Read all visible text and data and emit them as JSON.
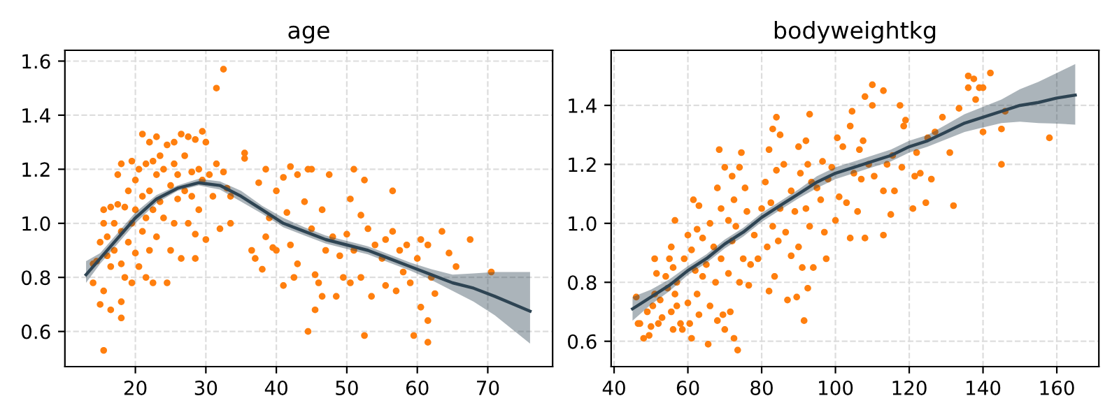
{
  "chart_data": [
    {
      "type": "scatter",
      "title": "age",
      "xlim": [
        10,
        79.2
      ],
      "ylim": [
        0.47,
        1.64
      ],
      "xticks": [
        20,
        30,
        40,
        50,
        60,
        70
      ],
      "yticks": [
        0.6,
        0.8,
        {
          "value": 1,
          "label": "1.0"
        },
        1.2,
        1.4,
        1.6
      ],
      "grid": true,
      "marker": "circle",
      "series": [
        {
          "color": "#ff7f0e",
          "x": [
            14,
            14.5,
            15,
            15.5,
            15.5,
            16,
            16,
            16.5,
            16.5,
            17,
            17,
            17.5,
            17.5,
            18,
            18,
            18,
            18.5,
            18.5,
            19,
            19,
            19.5,
            19.5,
            19.5,
            20,
            20,
            20,
            20.5,
            20.5,
            21,
            21,
            21,
            21.5,
            21.5,
            21.5,
            22,
            22,
            22,
            22.5,
            22.5,
            22.5,
            23,
            23,
            23,
            23.5,
            23.5,
            24,
            24,
            24.5,
            24.5,
            25,
            25,
            25.5,
            25.5,
            25.5,
            26,
            26,
            26.5,
            26.5,
            27,
            27,
            27.5,
            27.5,
            28,
            28,
            28.5,
            28.5,
            28.5,
            29,
            29,
            29.5,
            29.5,
            30,
            30,
            30.5,
            31,
            31.5,
            31.5,
            32,
            32.5,
            32.5,
            33,
            33.5,
            33.5,
            35.5,
            35.5,
            36.5,
            37,
            37.5,
            38,
            38.5,
            38.5,
            39,
            39.5,
            40,
            40,
            41,
            41,
            41.5,
            42,
            42,
            42.5,
            43,
            43,
            44,
            44.5,
            44.5,
            45,
            45,
            45.5,
            45.5,
            46,
            46.5,
            46.5,
            47,
            47.5,
            48,
            48.5,
            49,
            49.5,
            50,
            50.5,
            50.5,
            51,
            51,
            52,
            52,
            52.5,
            52.5,
            53,
            53.5,
            54,
            55,
            55.5,
            55.5,
            56.5,
            56.5,
            57,
            57.5,
            58,
            58.5,
            59,
            59.5,
            60,
            60.5,
            60.5,
            61.5,
            61.5,
            61.5,
            62,
            62.5,
            63.5,
            64.5,
            65.5,
            67.5,
            70.5,
            14,
            15,
            15.5,
            15.5,
            16.5,
            18,
            18
          ],
          "values": [
            0.85,
            0.86,
            0.93,
            1.0,
            1.05,
            0.88,
            0.95,
            1.06,
            0.84,
            1.0,
            0.9,
            1.07,
            1.18,
            1.22,
            0.97,
            0.85,
            1.06,
            0.8,
            1.12,
            0.93,
            1.23,
            1.0,
            0.78,
            1.16,
            1.05,
            0.89,
            1.2,
            0.84,
            1.33,
            1.1,
            0.97,
            1.22,
            1.02,
            0.8,
            1.3,
            1.12,
            0.9,
            1.23,
            1.05,
            0.78,
            1.32,
            1.18,
            0.95,
            1.25,
            1.08,
            1.2,
            1.02,
            1.29,
            0.78,
            1.14,
            0.9,
            1.3,
            1.22,
            1.0,
            1.18,
            1.09,
            1.33,
            0.87,
            1.25,
            1.12,
            1.32,
            1.0,
            1.19,
            1.1,
            1.31,
            0.96,
            0.87,
            1.2,
            1.05,
            1.34,
            1.16,
            1.3,
            0.94,
            1.18,
            1.1,
            1.5,
            1.22,
            0.98,
            1.57,
            1.19,
            1.13,
            1.0,
            1.1,
            1.26,
            1.24,
            0.9,
            0.87,
            1.15,
            0.83,
            1.2,
            0.95,
            1.02,
            0.91,
            1.12,
            0.9,
            1.17,
            0.77,
            1.04,
            1.21,
            0.92,
            0.8,
            1.18,
            0.85,
            1.08,
            1.2,
            0.6,
            1.2,
            0.98,
            0.81,
            0.68,
            0.78,
            1.05,
            0.73,
            0.9,
            1.18,
            0.95,
            0.73,
            0.88,
            0.8,
            0.96,
            1.09,
            0.78,
            1.2,
            0.9,
            1.03,
            0.8,
            1.16,
            0.585,
            0.98,
            0.73,
            0.92,
            0.87,
            0.94,
            0.77,
            1.12,
            0.97,
            0.75,
            0.9,
            0.82,
            0.92,
            0.78,
            0.585,
            0.87,
            0.94,
            0.69,
            0.92,
            0.64,
            0.56,
            0.8,
            0.74,
            0.97,
            0.89,
            0.84,
            0.94,
            0.82,
            0.78,
            0.7,
            0.53,
            0.75,
            0.68,
            0.65,
            0.71
          ]
        },
        {
          "type": "line",
          "marker": "none",
          "color": "#2e4453",
          "x": [
            13,
            15,
            17,
            20,
            23,
            26,
            29,
            32,
            35,
            38,
            41,
            44,
            47,
            50,
            53,
            56,
            59,
            62,
            65,
            68,
            71,
            76
          ],
          "values": [
            0.81,
            0.87,
            0.93,
            1.02,
            1.09,
            1.13,
            1.15,
            1.14,
            1.1,
            1.05,
            1.0,
            0.97,
            0.94,
            0.92,
            0.9,
            0.87,
            0.84,
            0.81,
            0.78,
            0.76,
            0.73,
            0.675
          ],
          "lower": [
            0.78,
            0.85,
            0.91,
            1.0,
            1.075,
            1.12,
            1.14,
            1.125,
            1.08,
            1.035,
            0.985,
            0.955,
            0.925,
            0.905,
            0.885,
            0.855,
            0.825,
            0.79,
            0.75,
            0.71,
            0.66,
            0.555
          ],
          "upper": [
            0.86,
            0.89,
            0.95,
            1.04,
            1.105,
            1.14,
            1.165,
            1.155,
            1.12,
            1.065,
            1.02,
            0.985,
            0.955,
            0.935,
            0.915,
            0.885,
            0.855,
            0.83,
            0.81,
            0.815,
            0.82,
            0.82
          ]
        }
      ]
    },
    {
      "type": "scatter",
      "title": "bodyweightkg",
      "xlim": [
        39.2,
        171.4
      ],
      "ylim": [
        0.514,
        1.587
      ],
      "xticks": [
        40,
        60,
        80,
        100,
        120,
        140,
        160
      ],
      "yticks": [
        0.6,
        0.8,
        {
          "value": 1,
          "label": "1.0"
        },
        1.2,
        1.4
      ],
      "grid": true,
      "marker": "circle",
      "series": [
        {
          "color": "#ff7f0e",
          "x": [
            46,
            46.5,
            47,
            48,
            49,
            49.5,
            50,
            50.5,
            51,
            51,
            51.5,
            52,
            52.5,
            53,
            54,
            54.5,
            55,
            55.5,
            55.5,
            56,
            56,
            56.5,
            56.5,
            57,
            57,
            58,
            58.5,
            59,
            60,
            60,
            60.5,
            61,
            61,
            61.5,
            62,
            62.5,
            62.5,
            63,
            63,
            64,
            64,
            65,
            65.5,
            66,
            66,
            67,
            67.5,
            68,
            68,
            68.5,
            69,
            69,
            69.5,
            70,
            70,
            71,
            71,
            71.5,
            72,
            72,
            72.5,
            72.5,
            73,
            73.5,
            74,
            74,
            74.5,
            75,
            75.5,
            76,
            76.5,
            77,
            78,
            79,
            80,
            81,
            81.5,
            82,
            82,
            82.5,
            83,
            83,
            83.5,
            84,
            84,
            84.5,
            85,
            85,
            86,
            86.5,
            87,
            88,
            88,
            89,
            89.5,
            90,
            90,
            90.5,
            91,
            91.5,
            92,
            92,
            92.5,
            92.5,
            93,
            93,
            93.5,
            94,
            95,
            96,
            96.5,
            97,
            97.5,
            98,
            99,
            100,
            100.5,
            101,
            102,
            103,
            104,
            104,
            104.5,
            105,
            106,
            106.5,
            107,
            107.5,
            108,
            108,
            109,
            110,
            110,
            110.5,
            113,
            113,
            113,
            114,
            115,
            115.5,
            116,
            117.5,
            118,
            118.5,
            119,
            121,
            121.5,
            122,
            123,
            124.5,
            125,
            126,
            127,
            129,
            131,
            132,
            133.5,
            136,
            136,
            137.5,
            138,
            139,
            140,
            140,
            142,
            145,
            145,
            146,
            158
          ],
          "values": [
            0.75,
            0.66,
            0.66,
            0.61,
            0.7,
            0.62,
            0.65,
            0.72,
            0.88,
            0.76,
            0.83,
            0.66,
            0.74,
            0.68,
            0.82,
            0.78,
            0.88,
            0.92,
            0.7,
            0.85,
            0.64,
            1.01,
            0.76,
            0.8,
            0.72,
            0.66,
            0.64,
            0.88,
            0.96,
            0.73,
            0.66,
            0.91,
            0.61,
            1.08,
            0.84,
            0.98,
            0.76,
            1.06,
            0.69,
            0.95,
            0.82,
            0.86,
            0.59,
            1.0,
            0.72,
            0.92,
            0.8,
            1.12,
            0.67,
            1.25,
            1.05,
            0.88,
            0.69,
            1.19,
            0.64,
            1.01,
            0.83,
            0.7,
            1.16,
            0.94,
            1.08,
            0.61,
            0.99,
            0.57,
            1.19,
            0.8,
            1.24,
            0.88,
            1.12,
            1.04,
            0.79,
            0.86,
            0.96,
            0.88,
            1.05,
            1.14,
            0.92,
            1.25,
            0.77,
            1.07,
            1.32,
            0.99,
            0.82,
            1.36,
            1.18,
            0.94,
            1.3,
            1.05,
            1.2,
            0.97,
            0.74,
            1.11,
            0.89,
            1.04,
            0.75,
            1.26,
            0.92,
            1.17,
            0.85,
            0.67,
            1.28,
            1.05,
            1.2,
            0.78,
            1.37,
            0.99,
            1.14,
            0.85,
            1.12,
            1.08,
            1.21,
            0.97,
            0.88,
            1.15,
            1.19,
            1.01,
            1.29,
            1.09,
            1.26,
            1.07,
            1.33,
            0.95,
            1.38,
            1.17,
            1.04,
            1.25,
            1.15,
            1.28,
            0.95,
            1.43,
            1.2,
            1.47,
            1.4,
            1.16,
            1.45,
            1.11,
            0.96,
            1.2,
            1.03,
            1.23,
            1.11,
            1.4,
            1.19,
            1.33,
            1.35,
            1.05,
            1.16,
            1.24,
            1.17,
            1.07,
            1.29,
            1.15,
            1.31,
            1.36,
            1.24,
            1.06,
            1.39,
            1.5,
            1.46,
            1.49,
            1.42,
            1.46,
            1.46,
            1.31,
            1.51,
            1.2,
            1.32,
            1.38,
            1.29
          ]
        },
        {
          "type": "line",
          "marker": "none",
          "color": "#2e4453",
          "x": [
            45,
            50,
            55,
            60,
            65,
            70,
            75,
            80,
            85,
            90,
            95,
            100,
            105,
            110,
            115,
            120,
            125,
            130,
            135,
            140,
            145,
            150,
            155,
            160,
            165
          ],
          "values": [
            0.71,
            0.75,
            0.79,
            0.84,
            0.88,
            0.93,
            0.97,
            1.02,
            1.06,
            1.1,
            1.14,
            1.17,
            1.19,
            1.21,
            1.23,
            1.26,
            1.28,
            1.31,
            1.34,
            1.36,
            1.38,
            1.4,
            1.41,
            1.425,
            1.435
          ],
          "lower": [
            0.67,
            0.725,
            0.77,
            0.825,
            0.865,
            0.915,
            0.955,
            1.005,
            1.045,
            1.085,
            1.12,
            1.15,
            1.17,
            1.19,
            1.21,
            1.24,
            1.26,
            1.285,
            1.31,
            1.325,
            1.34,
            1.345,
            1.34,
            1.338,
            1.335
          ],
          "upper": [
            0.75,
            0.775,
            0.81,
            0.855,
            0.895,
            0.945,
            0.985,
            1.035,
            1.075,
            1.115,
            1.16,
            1.19,
            1.21,
            1.23,
            1.25,
            1.28,
            1.3,
            1.335,
            1.37,
            1.395,
            1.42,
            1.455,
            1.48,
            1.51,
            1.54
          ]
        }
      ]
    }
  ]
}
